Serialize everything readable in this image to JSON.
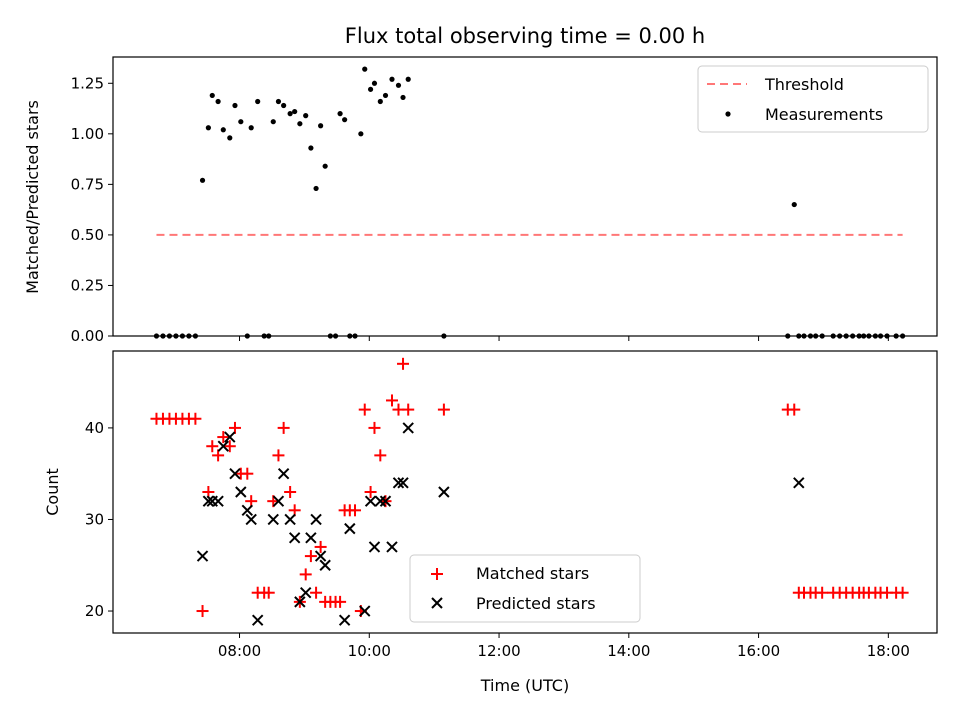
{
  "chart_data": {
    "title": "Flux total observing time = 0.00 h",
    "xlabel": "Time (UTC)",
    "x_ticks": [
      "08:00",
      "10:00",
      "12:00",
      "14:00",
      "16:00",
      "18:00"
    ],
    "x_tick_hours": [
      8,
      10,
      12,
      14,
      16,
      18
    ],
    "xlim": [
      6.05,
      18.75
    ],
    "panels": [
      {
        "type": "scatter",
        "ylabel": "Matched/Predicted stars",
        "ylim": [
          0,
          1.38
        ],
        "y_ticks": [
          0.0,
          0.25,
          0.5,
          0.75,
          1.0,
          1.25
        ],
        "y_tick_labels": [
          "0.00",
          "0.25",
          "0.50",
          "0.75",
          "1.00",
          "1.25"
        ],
        "legend_position": "top-right",
        "series": [
          {
            "name": "Threshold",
            "kind": "line",
            "color": "#ff7777",
            "x": [
              6.72,
              18.22
            ],
            "y": [
              0.5,
              0.5
            ]
          },
          {
            "name": "Measurements",
            "kind": "dot",
            "color": "#000000",
            "x": [
              6.72,
              6.82,
              6.92,
              7.02,
              7.12,
              7.22,
              7.32,
              7.43,
              7.52,
              7.58,
              7.67,
              7.75,
              7.85,
              7.93,
              8.02,
              8.12,
              8.18,
              8.28,
              8.38,
              8.45,
              8.52,
              8.6,
              8.68,
              8.78,
              8.85,
              8.93,
              9.02,
              9.1,
              9.18,
              9.25,
              9.32,
              9.4,
              9.48,
              9.55,
              9.62,
              9.7,
              9.78,
              9.87,
              9.93,
              10.02,
              10.08,
              10.17,
              10.25,
              10.35,
              10.45,
              10.52,
              10.6,
              11.15,
              16.45,
              16.55,
              16.62,
              16.7,
              16.8,
              16.88,
              16.98,
              17.15,
              17.25,
              17.35,
              17.45,
              17.55,
              17.62,
              17.7,
              17.8,
              17.88,
              17.98,
              18.12,
              18.22
            ],
            "y": [
              0,
              0,
              0,
              0,
              0,
              0,
              0,
              0.77,
              1.03,
              1.19,
              1.16,
              1.02,
              0.98,
              1.14,
              1.06,
              0,
              1.03,
              1.16,
              0,
              0,
              1.06,
              1.16,
              1.14,
              1.1,
              1.11,
              1.05,
              1.09,
              0.93,
              0.73,
              1.04,
              0.84,
              0,
              0,
              1.1,
              1.07,
              0,
              0,
              1.0,
              1.32,
              1.22,
              1.25,
              1.16,
              1.19,
              1.27,
              1.24,
              1.18,
              1.27,
              0,
              0,
              0.65,
              0,
              0,
              0,
              0,
              0,
              0,
              0,
              0,
              0,
              0,
              0,
              0,
              0,
              0,
              0,
              0,
              0
            ]
          }
        ]
      },
      {
        "type": "scatter",
        "ylabel": "Count",
        "ylim": [
          17.6,
          48.4
        ],
        "y_ticks": [
          20,
          30,
          40
        ],
        "y_tick_labels": [
          "20",
          "30",
          "40"
        ],
        "legend_position": "lower-center",
        "series": [
          {
            "name": "Matched stars",
            "kind": "plus",
            "color": "#ff0000",
            "x": [
              6.72,
              6.82,
              6.92,
              7.02,
              7.12,
              7.22,
              7.32,
              7.43,
              7.52,
              7.58,
              7.67,
              7.75,
              7.85,
              7.93,
              8.02,
              8.12,
              8.18,
              8.28,
              8.38,
              8.45,
              8.52,
              8.6,
              8.68,
              8.78,
              8.85,
              8.93,
              9.02,
              9.1,
              9.18,
              9.25,
              9.32,
              9.4,
              9.48,
              9.55,
              9.62,
              9.7,
              9.78,
              9.87,
              9.93,
              10.02,
              10.08,
              10.17,
              10.25,
              10.35,
              10.45,
              10.52,
              10.6,
              11.15,
              16.45,
              16.55,
              16.62,
              16.7,
              16.8,
              16.88,
              16.98,
              17.15,
              17.25,
              17.35,
              17.45,
              17.55,
              17.62,
              17.7,
              17.8,
              17.88,
              17.98,
              18.12,
              18.22
            ],
            "y": [
              41,
              41,
              41,
              41,
              41,
              41,
              41,
              20,
              33,
              38,
              37,
              39,
              38,
              40,
              35,
              35,
              32,
              22,
              22,
              22,
              32,
              37,
              40,
              33,
              31,
              21,
              24,
              26,
              22,
              27,
              21,
              21,
              21,
              21,
              31,
              31,
              31,
              20,
              42,
              33,
              40,
              37,
              32,
              43,
              42,
              47,
              42,
              42,
              42,
              42,
              22,
              22,
              22,
              22,
              22,
              22,
              22,
              22,
              22,
              22,
              22,
              22,
              22,
              22,
              22,
              22,
              22
            ]
          },
          {
            "name": "Predicted stars",
            "kind": "cross",
            "color": "#000000",
            "x": [
              7.43,
              7.52,
              7.58,
              7.67,
              7.75,
              7.85,
              7.93,
              8.02,
              8.12,
              8.18,
              8.28,
              8.52,
              8.6,
              8.68,
              8.78,
              8.85,
              8.93,
              9.02,
              9.1,
              9.18,
              9.25,
              9.32,
              9.62,
              9.7,
              9.93,
              10.02,
              10.08,
              10.17,
              10.25,
              10.35,
              10.45,
              10.52,
              10.6,
              11.15,
              16.62
            ],
            "y": [
              26,
              32,
              32,
              32,
              38,
              39,
              35,
              33,
              31,
              30,
              19,
              30,
              32,
              35,
              30,
              28,
              21,
              22,
              28,
              30,
              26,
              25,
              19,
              29,
              20,
              32,
              27,
              32,
              32,
              27,
              34,
              34,
              40,
              33,
              34
            ]
          }
        ]
      }
    ]
  }
}
